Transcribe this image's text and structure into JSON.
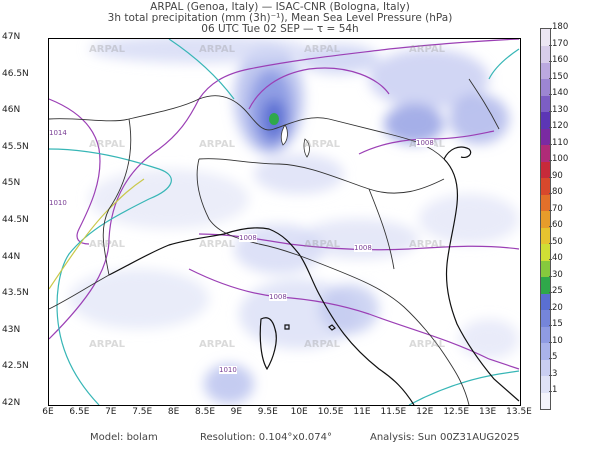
{
  "header": {
    "line1": "ARPAL (Genoa, Italy)  —  ISAC-CNR (Bologna, Italy)",
    "line2": "3h total precipitation (mm (3h)⁻¹), Mean Sea Level Pressure (hPa)",
    "line3": "06 UTC Tue 02 SEP   —   τ = 54h"
  },
  "axes": {
    "lat_labels": [
      "47N",
      "46.5N",
      "46N",
      "45.5N",
      "45N",
      "44.5N",
      "44N",
      "43.5N",
      "43N",
      "42.5N",
      "42N"
    ],
    "lon_labels": [
      "6E",
      "6.5E",
      "7E",
      "7.5E",
      "8E",
      "8.5E",
      "9E",
      "9.5E",
      "10E",
      "10.5E",
      "11E",
      "11.5E",
      "12E",
      "12.5E",
      "13E",
      "13.5E"
    ]
  },
  "isobars": {
    "labels": [
      "1008",
      "1008",
      "1008",
      "1008",
      "1010",
      "1014",
      "1010"
    ]
  },
  "watermark": "ARPAL",
  "colorbar": {
    "labels": [
      "1",
      "3",
      "5",
      "10",
      "15",
      "20",
      "25",
      "30",
      "40",
      "50",
      "60",
      "70",
      "80",
      "90",
      "100",
      "110",
      "120",
      "130",
      "140",
      "150",
      "160",
      "170",
      "180"
    ],
    "colors": [
      "#f4f4fb",
      "#dfe2f6",
      "#c9cef1",
      "#aab3ea",
      "#8f9be2",
      "#7585da",
      "#5a6fd2",
      "#2fa84a",
      "#86c93d",
      "#d0de35",
      "#e6c32f",
      "#e79c2b",
      "#e2702a",
      "#d8482c",
      "#c72a3a",
      "#b02b78",
      "#7a2aa2",
      "#5c36b5",
      "#7c5ec4",
      "#9c86d2",
      "#bba9df",
      "#d8cdea",
      "#ece6f3"
    ]
  },
  "footer": {
    "model": "Model: bolam",
    "resolution": "Resolution: 0.104°x0.074°",
    "analysis": "Analysis: Sun 00Z31AUG2025"
  }
}
